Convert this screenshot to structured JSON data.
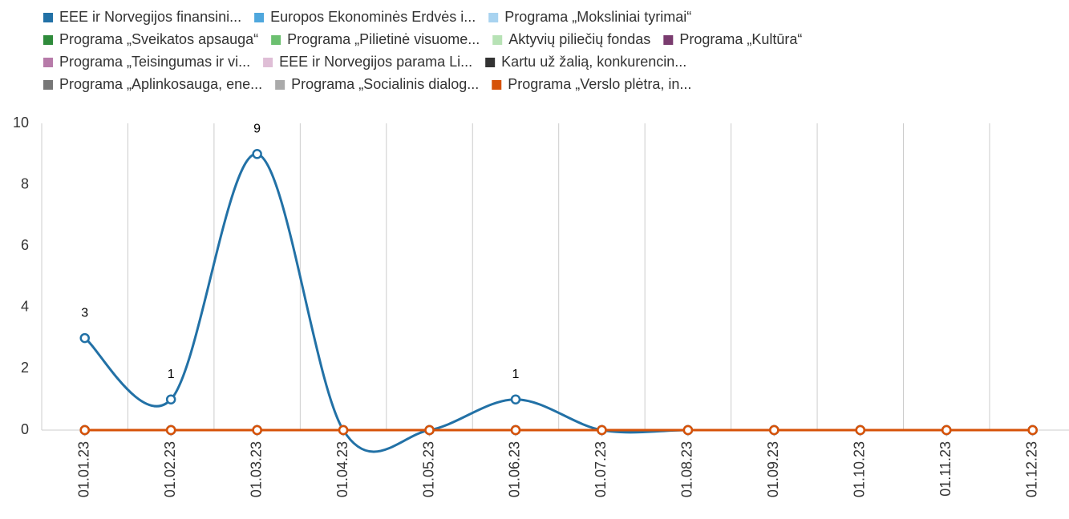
{
  "chart_data": {
    "type": "line",
    "categories": [
      "01.01.23",
      "01.02.23",
      "01.03.23",
      "01.04.23",
      "01.05.23",
      "01.06.23",
      "01.07.23",
      "01.08.23",
      "01.09.23",
      "01.10.23",
      "01.11.23",
      "01.12.23"
    ],
    "series": [
      {
        "name": "EEE ir Norvegijos finansini...",
        "color": "#2271a6",
        "values": [
          3,
          1,
          9,
          0,
          0,
          1,
          0,
          0,
          0,
          0,
          0,
          0
        ]
      },
      {
        "name": "Europos Ekonominės Erdvės i...",
        "color": "#4fa7dd",
        "values": [
          0,
          0,
          0,
          0,
          0,
          0,
          0,
          0,
          0,
          0,
          0,
          0
        ]
      },
      {
        "name": "Programa „Moksliniai tyrimai“",
        "color": "#a8d3f0",
        "values": [
          0,
          0,
          0,
          0,
          0,
          0,
          0,
          0,
          0,
          0,
          0,
          0
        ]
      },
      {
        "name": "Programa „Sveikatos apsauga“",
        "color": "#2f8b3b",
        "values": [
          0,
          0,
          0,
          0,
          0,
          0,
          0,
          0,
          0,
          0,
          0,
          0
        ]
      },
      {
        "name": "Programa „Pilietinė visuome...",
        "color": "#6cc070",
        "values": [
          0,
          0,
          0,
          0,
          0,
          0,
          0,
          0,
          0,
          0,
          0,
          0
        ]
      },
      {
        "name": "Aktyvių piliečių fondas",
        "color": "#b7e2b5",
        "values": [
          0,
          0,
          0,
          0,
          0,
          0,
          0,
          0,
          0,
          0,
          0,
          0
        ]
      },
      {
        "name": "Programa „Kultūra“",
        "color": "#7a3c6f",
        "values": [
          0,
          0,
          0,
          0,
          0,
          0,
          0,
          0,
          0,
          0,
          0,
          0
        ]
      },
      {
        "name": "Programa „Teisingumas ir vi...",
        "color": "#b77ba9",
        "values": [
          0,
          0,
          0,
          0,
          0,
          0,
          0,
          0,
          0,
          0,
          0,
          0
        ]
      },
      {
        "name": "EEE ir Norvegijos parama Li...",
        "color": "#dfbed6",
        "values": [
          0,
          0,
          0,
          0,
          0,
          0,
          0,
          0,
          0,
          0,
          0,
          0
        ]
      },
      {
        "name": "Kartu už žalią, konkurencin...",
        "color": "#333333",
        "values": [
          0,
          0,
          0,
          0,
          0,
          0,
          0,
          0,
          0,
          0,
          0,
          0
        ]
      },
      {
        "name": "Programa „Aplinkosauga, ene...",
        "color": "#777777",
        "values": [
          0,
          0,
          0,
          0,
          0,
          0,
          0,
          0,
          0,
          0,
          0,
          0
        ]
      },
      {
        "name": "Programa „Socialinis dialog...",
        "color": "#aaaaaa",
        "values": [
          0,
          0,
          0,
          0,
          0,
          0,
          0,
          0,
          0,
          0,
          0,
          0
        ]
      },
      {
        "name": "Programa „Verslo plėtra, in...",
        "color": "#d65208",
        "values": [
          0,
          0,
          0,
          0,
          0,
          0,
          0,
          0,
          0,
          0,
          0,
          0
        ]
      }
    ],
    "ylim": [
      0,
      10
    ],
    "yticks": [
      0,
      2,
      4,
      6,
      8,
      10
    ],
    "grid": true,
    "data_labels": true
  }
}
